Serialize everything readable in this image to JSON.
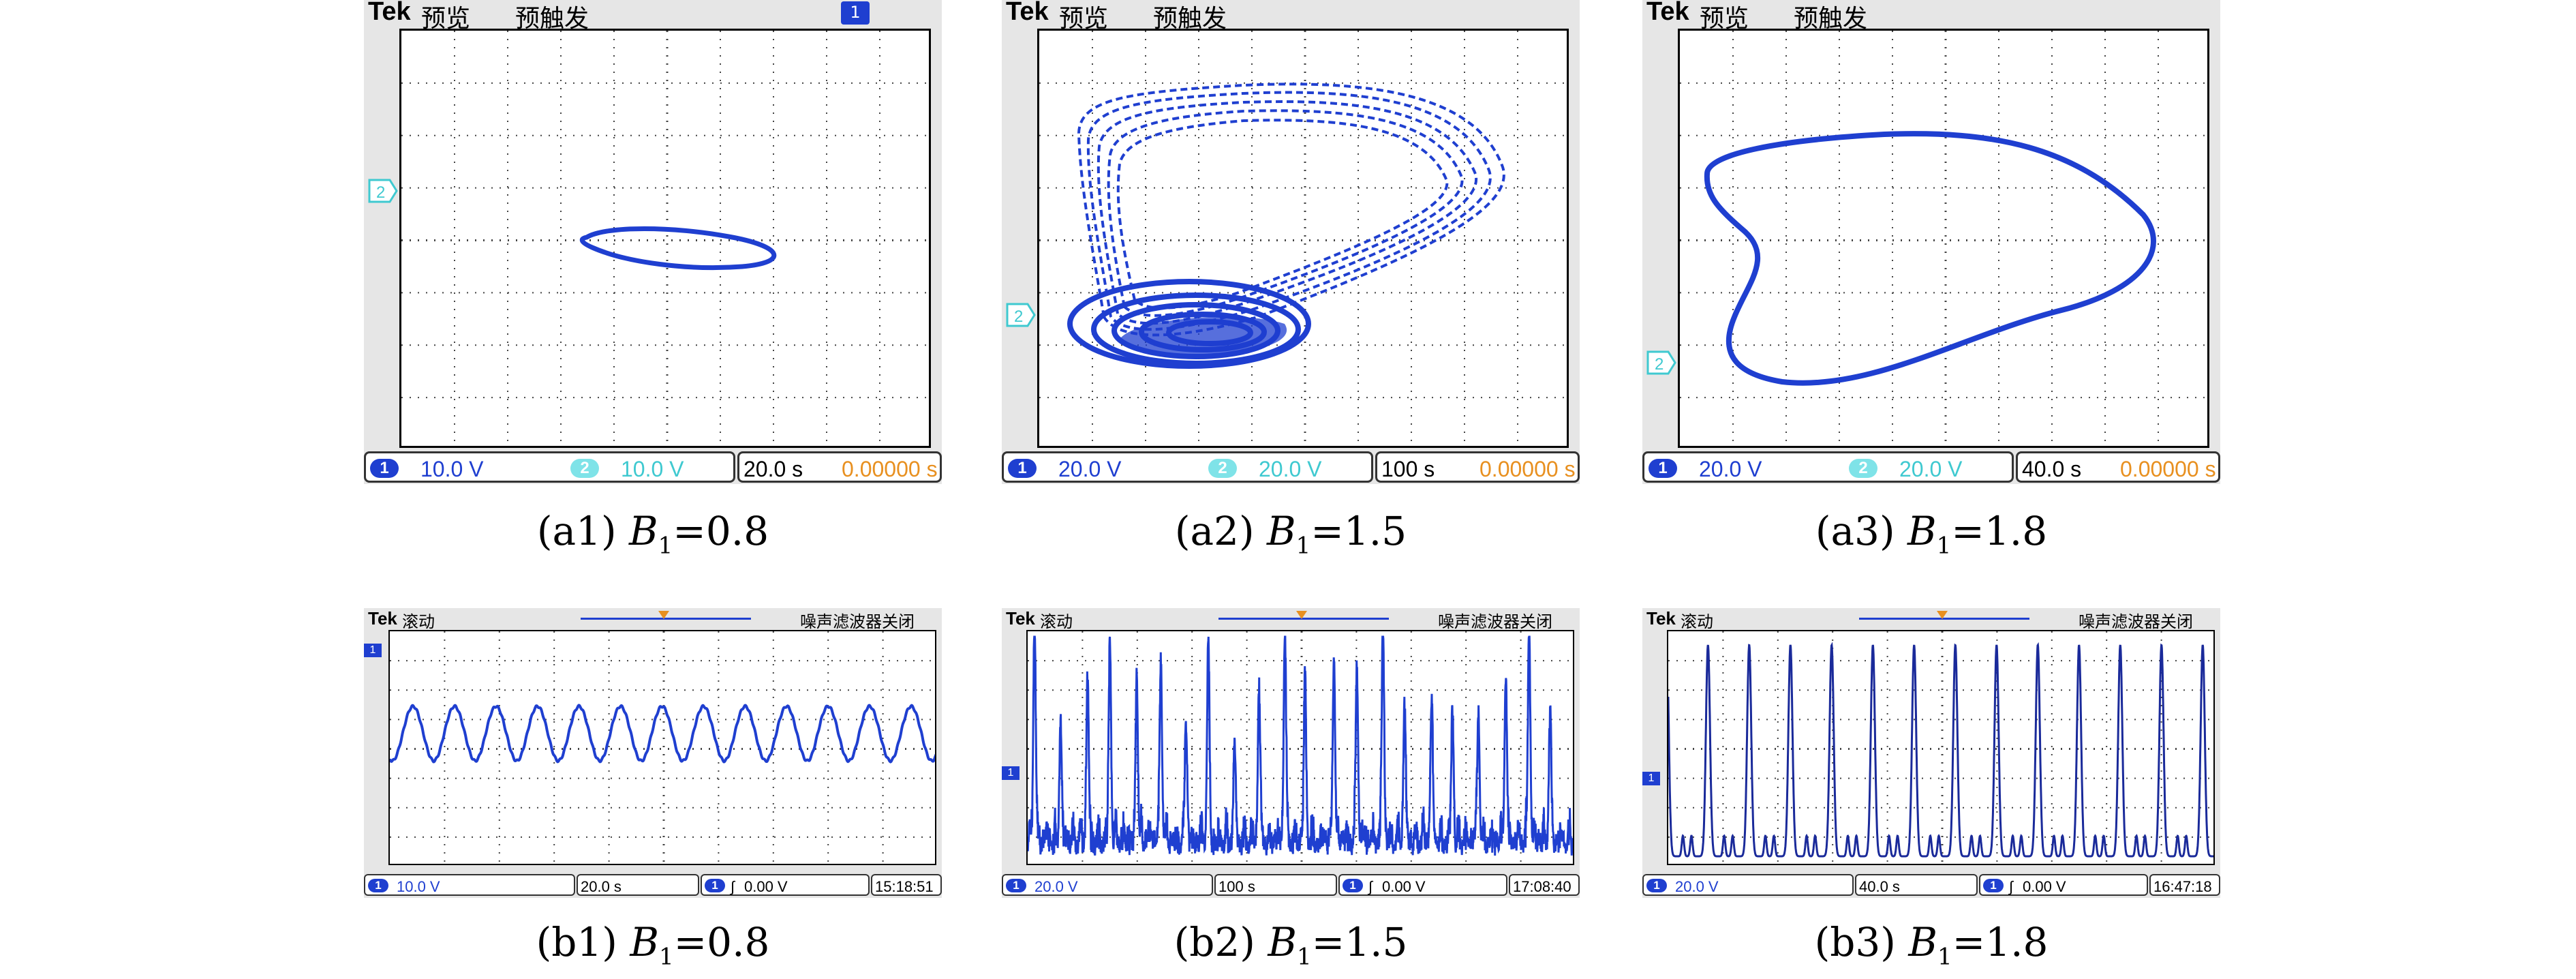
{
  "panels_a": [
    {
      "id": "a1",
      "tek": "Tek",
      "mode": "预览",
      "trigger": "预触发",
      "ch1": "10.0 V",
      "ch2": "10.0 V",
      "time": "20.0 s",
      "pos": "0.00000 s",
      "caption_prefix": "(a1) ",
      "caption_var": "B",
      "caption_sub": "1",
      "caption_val": "=0.8",
      "ch1_marker": "1",
      "ch2_marker": "2"
    },
    {
      "id": "a2",
      "tek": "Tek",
      "mode": "预览",
      "trigger": "预触发",
      "ch1": "20.0 V",
      "ch2": "20.0 V",
      "time": "100 s",
      "pos": "0.00000 s",
      "caption_prefix": "(a2) ",
      "caption_var": "B",
      "caption_sub": "1",
      "caption_val": "=1.5",
      "ch1_marker": "1",
      "ch2_marker": "2"
    },
    {
      "id": "a3",
      "tek": "Tek",
      "mode": "预览",
      "trigger": "预触发",
      "ch1": "20.0 V",
      "ch2": "20.0 V",
      "time": "40.0 s",
      "pos": "0.00000 s",
      "caption_prefix": "(a3) ",
      "caption_var": "B",
      "caption_sub": "1",
      "caption_val": "=1.8",
      "ch1_marker": "1",
      "ch2_marker": "2"
    }
  ],
  "panels_b": [
    {
      "id": "b1",
      "tek": "Tek",
      "mode": "滚动",
      "filter": "噪声滤波器关闭",
      "ch1": "10.0 V",
      "time": "20.0 s",
      "trig": "0.00 V",
      "clock": "15:18:51",
      "caption_prefix": "(b1) ",
      "caption_var": "B",
      "caption_sub": "1",
      "caption_val": "=0.8",
      "ch1_marker": "1"
    },
    {
      "id": "b2",
      "tek": "Tek",
      "mode": "滚动",
      "filter": "噪声滤波器关闭",
      "ch1": "20.0 V",
      "time": "100 s",
      "trig": "0.00 V",
      "clock": "17:08:40",
      "caption_prefix": "(b2) ",
      "caption_var": "B",
      "caption_sub": "1",
      "caption_val": "=1.5",
      "ch1_marker": "1"
    },
    {
      "id": "b3",
      "tek": "Tek",
      "mode": "滚动",
      "filter": "噪声滤波器关闭",
      "ch1": "20.0 V",
      "time": "40.0 s",
      "trig": "0.00 V",
      "clock": "16:47:18",
      "caption_prefix": "(b3) ",
      "caption_var": "B",
      "caption_sub": "1",
      "caption_val": "=1.8",
      "ch1_marker": "1"
    }
  ],
  "colors": {
    "trace": "#1f3fd0",
    "trace_dark": "#1a2a9a",
    "ch2": "#3fc9d0",
    "offset": "#e89020",
    "frame": "#e6e6e6"
  }
}
